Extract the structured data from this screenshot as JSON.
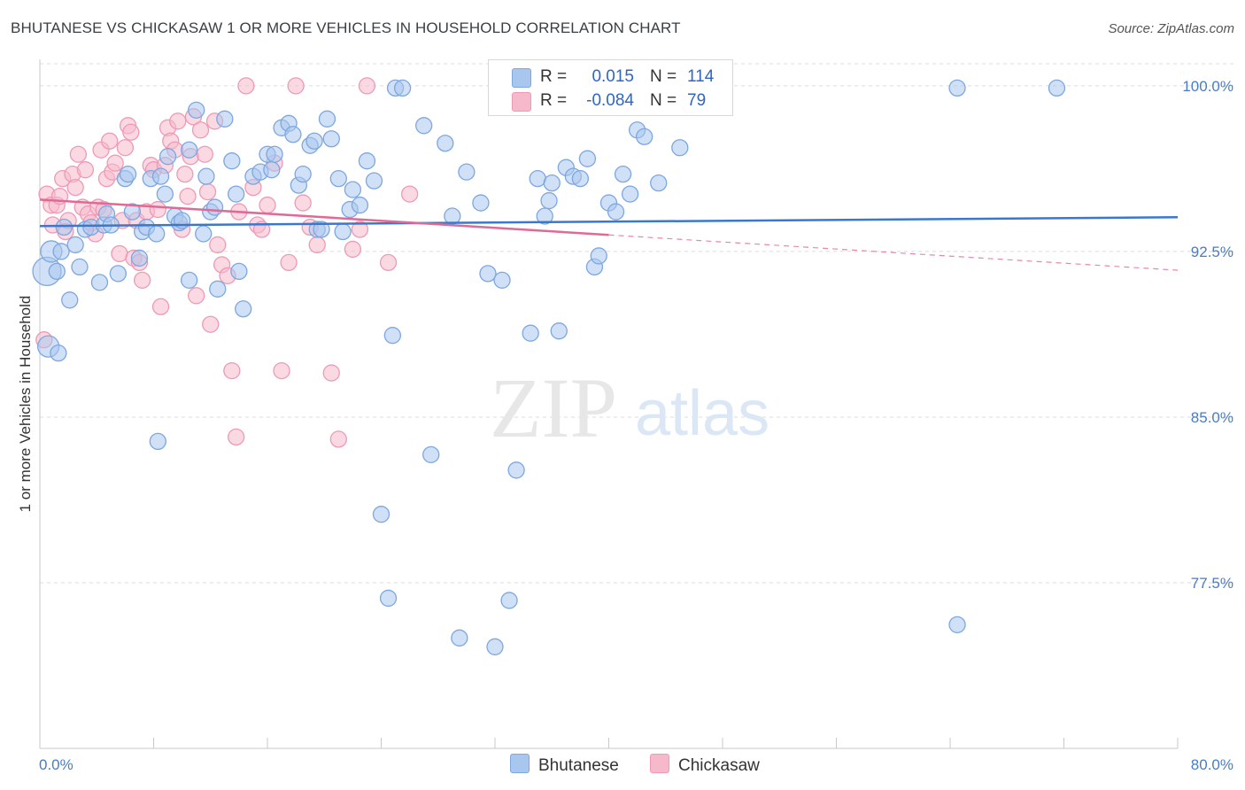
{
  "title": "BHUTANESE VS CHICKASAW 1 OR MORE VEHICLES IN HOUSEHOLD CORRELATION CHART",
  "source": "Source: ZipAtlas.com",
  "watermark": {
    "zip": "ZIP",
    "atlas": "atlas"
  },
  "colors": {
    "blue_fill": "#a9c6ee",
    "blue_stroke": "#7da7df",
    "blue_line": "#3b78cc",
    "pink_fill": "#f6b9cc",
    "pink_stroke": "#ee9ab5",
    "pink_line": "#e06a96",
    "grid": "#dcdcdc",
    "tick_text": "#4a7cc4"
  },
  "legend": {
    "rows": [
      {
        "r_label": "R =",
        "r_value": "0.015",
        "n_label": "N =",
        "n_value": "114",
        "color": "#a9c6ee"
      },
      {
        "r_label": "R =",
        "r_value": "-0.084",
        "n_label": "N =",
        "n_value": "79",
        "color": "#f6b9cc"
      }
    ]
  },
  "bottom_legend": [
    {
      "label": "Bhutanese",
      "color": "#a9c6ee"
    },
    {
      "label": "Chickasaw",
      "color": "#f6b9cc"
    }
  ],
  "chart_data": {
    "type": "scatter",
    "title": "BHUTANESE VS CHICKASAW 1 OR MORE VEHICLES IN HOUSEHOLD CORRELATION CHART",
    "xlabel": "",
    "ylabel": "1 or more Vehicles in Household",
    "xlim": [
      0,
      80
    ],
    "ylim": [
      70.0,
      101.4
    ],
    "x_tick_labels": [
      "0.0%",
      "80.0%"
    ],
    "y_ticks": [
      100.0,
      92.5,
      85.0,
      77.5
    ],
    "y_tick_labels": [
      "100.0%",
      "92.5%",
      "85.0%",
      "77.5%"
    ],
    "grid": true,
    "legend_position": "top-center",
    "series": [
      {
        "name": "Bhutanese",
        "r": 0.015,
        "n": 114,
        "trend": {
          "x": [
            0,
            80
          ],
          "y": [
            93.65,
            94.05
          ]
        },
        "points": [
          [
            0.5,
            91.6
          ],
          [
            0.6,
            88.2
          ],
          [
            0.8,
            92.5
          ],
          [
            1.2,
            91.6
          ],
          [
            1.3,
            87.9
          ],
          [
            1.5,
            92.5
          ],
          [
            1.7,
            93.6
          ],
          [
            2.1,
            90.3
          ],
          [
            2.5,
            92.8
          ],
          [
            2.8,
            91.8
          ],
          [
            3.2,
            93.5
          ],
          [
            3.6,
            93.6
          ],
          [
            4.2,
            91.1
          ],
          [
            4.5,
            93.7
          ],
          [
            4.7,
            94.2
          ],
          [
            5.0,
            93.7
          ],
          [
            5.5,
            91.5
          ],
          [
            6.0,
            95.8
          ],
          [
            6.2,
            96.0
          ],
          [
            6.5,
            94.3
          ],
          [
            7.0,
            92.2
          ],
          [
            7.2,
            93.4
          ],
          [
            7.5,
            93.6
          ],
          [
            7.8,
            95.8
          ],
          [
            8.2,
            93.3
          ],
          [
            8.3,
            83.9
          ],
          [
            8.5,
            95.9
          ],
          [
            8.8,
            95.1
          ],
          [
            9.0,
            96.8
          ],
          [
            9.5,
            94.1
          ],
          [
            9.8,
            93.8
          ],
          [
            10.0,
            93.9
          ],
          [
            10.5,
            97.1
          ],
          [
            10.5,
            91.2
          ],
          [
            11.0,
            98.9
          ],
          [
            11.5,
            93.3
          ],
          [
            11.7,
            95.9
          ],
          [
            12.0,
            94.3
          ],
          [
            12.3,
            94.5
          ],
          [
            12.5,
            90.8
          ],
          [
            13.0,
            98.5
          ],
          [
            13.5,
            96.6
          ],
          [
            13.8,
            95.1
          ],
          [
            14.0,
            91.6
          ],
          [
            14.3,
            89.9
          ],
          [
            15.0,
            95.9
          ],
          [
            15.5,
            96.1
          ],
          [
            16.0,
            96.9
          ],
          [
            16.3,
            96.2
          ],
          [
            16.5,
            96.9
          ],
          [
            17.0,
            98.1
          ],
          [
            17.5,
            98.3
          ],
          [
            17.8,
            97.8
          ],
          [
            18.2,
            95.5
          ],
          [
            18.5,
            96.0
          ],
          [
            19.0,
            97.3
          ],
          [
            19.3,
            97.5
          ],
          [
            19.5,
            93.5
          ],
          [
            19.8,
            93.5
          ],
          [
            20.2,
            98.5
          ],
          [
            20.5,
            97.6
          ],
          [
            21.0,
            95.8
          ],
          [
            21.3,
            93.4
          ],
          [
            21.8,
            94.4
          ],
          [
            22.0,
            95.3
          ],
          [
            22.5,
            94.6
          ],
          [
            23.0,
            96.6
          ],
          [
            23.5,
            95.7
          ],
          [
            24.0,
            80.6
          ],
          [
            24.5,
            76.8
          ],
          [
            24.8,
            88.7
          ],
          [
            25.0,
            99.9
          ],
          [
            25.5,
            99.9
          ],
          [
            27.0,
            98.2
          ],
          [
            27.5,
            83.3
          ],
          [
            28.5,
            97.4
          ],
          [
            29.0,
            94.1
          ],
          [
            29.5,
            75.0
          ],
          [
            30.0,
            96.1
          ],
          [
            31.0,
            94.7
          ],
          [
            31.5,
            91.5
          ],
          [
            32.0,
            74.6
          ],
          [
            32.5,
            91.2
          ],
          [
            33.0,
            76.7
          ],
          [
            33.5,
            82.6
          ],
          [
            34.0,
            99.8
          ],
          [
            34.5,
            88.8
          ],
          [
            35.0,
            95.8
          ],
          [
            35.5,
            94.1
          ],
          [
            35.8,
            94.8
          ],
          [
            36.0,
            95.6
          ],
          [
            36.5,
            88.9
          ],
          [
            37.0,
            96.3
          ],
          [
            37.5,
            95.9
          ],
          [
            38.0,
            95.8
          ],
          [
            38.5,
            96.7
          ],
          [
            39.0,
            91.8
          ],
          [
            39.3,
            92.3
          ],
          [
            40.0,
            94.7
          ],
          [
            40.5,
            94.3
          ],
          [
            41.0,
            96.0
          ],
          [
            41.5,
            95.1
          ],
          [
            42.0,
            98.0
          ],
          [
            42.5,
            97.7
          ],
          [
            43.0,
            99.9
          ],
          [
            43.5,
            95.6
          ],
          [
            44.0,
            99.9
          ],
          [
            45.0,
            97.2
          ],
          [
            46.0,
            99.9
          ],
          [
            47.5,
            99.9
          ],
          [
            64.5,
            99.9
          ],
          [
            64.5,
            75.6
          ],
          [
            71.5,
            99.9
          ]
        ]
      },
      {
        "name": "Chickasaw",
        "r": -0.084,
        "n": 79,
        "trend": {
          "x": [
            0,
            40
          ],
          "y": [
            94.85,
            93.25
          ]
        },
        "trend_dashed": {
          "x": [
            40,
            80
          ],
          "y": [
            93.25,
            91.65
          ]
        },
        "points": [
          [
            0.3,
            88.5
          ],
          [
            0.5,
            95.1
          ],
          [
            0.8,
            94.6
          ],
          [
            0.9,
            93.7
          ],
          [
            1.2,
            94.6
          ],
          [
            1.4,
            95.0
          ],
          [
            1.6,
            95.8
          ],
          [
            1.8,
            93.4
          ],
          [
            2.0,
            93.9
          ],
          [
            2.3,
            96.0
          ],
          [
            2.5,
            95.4
          ],
          [
            2.7,
            96.9
          ],
          [
            3.0,
            94.5
          ],
          [
            3.2,
            96.2
          ],
          [
            3.4,
            94.2
          ],
          [
            3.6,
            93.8
          ],
          [
            3.9,
            93.3
          ],
          [
            4.1,
            94.5
          ],
          [
            4.3,
            97.1
          ],
          [
            4.5,
            94.4
          ],
          [
            4.7,
            95.8
          ],
          [
            4.9,
            97.5
          ],
          [
            5.1,
            96.1
          ],
          [
            5.3,
            96.5
          ],
          [
            5.6,
            92.4
          ],
          [
            5.8,
            93.9
          ],
          [
            6.0,
            97.2
          ],
          [
            6.2,
            98.2
          ],
          [
            6.4,
            97.9
          ],
          [
            6.6,
            92.2
          ],
          [
            6.8,
            93.9
          ],
          [
            7.0,
            92.0
          ],
          [
            7.2,
            91.2
          ],
          [
            7.5,
            94.3
          ],
          [
            7.8,
            96.4
          ],
          [
            8.0,
            96.2
          ],
          [
            8.3,
            94.4
          ],
          [
            8.5,
            90.0
          ],
          [
            8.8,
            96.4
          ],
          [
            9.0,
            98.1
          ],
          [
            9.2,
            97.5
          ],
          [
            9.5,
            97.1
          ],
          [
            9.7,
            98.4
          ],
          [
            10.0,
            93.5
          ],
          [
            10.2,
            96.0
          ],
          [
            10.4,
            95.0
          ],
          [
            10.6,
            96.8
          ],
          [
            10.8,
            98.6
          ],
          [
            11.0,
            90.5
          ],
          [
            11.3,
            98.0
          ],
          [
            11.6,
            96.9
          ],
          [
            11.8,
            95.2
          ],
          [
            12.0,
            89.2
          ],
          [
            12.3,
            98.4
          ],
          [
            12.5,
            92.8
          ],
          [
            12.8,
            91.9
          ],
          [
            13.2,
            91.4
          ],
          [
            13.5,
            87.1
          ],
          [
            13.8,
            84.1
          ],
          [
            14.0,
            94.3
          ],
          [
            14.5,
            100.0
          ],
          [
            15.0,
            95.4
          ],
          [
            15.3,
            93.7
          ],
          [
            15.6,
            93.5
          ],
          [
            16.0,
            94.6
          ],
          [
            16.5,
            96.5
          ],
          [
            17.0,
            87.1
          ],
          [
            17.5,
            92.0
          ],
          [
            18.0,
            100.0
          ],
          [
            18.5,
            94.7
          ],
          [
            19.0,
            93.6
          ],
          [
            19.5,
            92.8
          ],
          [
            20.5,
            87.0
          ],
          [
            21.0,
            84.0
          ],
          [
            22.0,
            92.6
          ],
          [
            22.5,
            93.5
          ],
          [
            23.0,
            100.0
          ],
          [
            24.5,
            92.0
          ],
          [
            26.0,
            95.1
          ]
        ]
      }
    ]
  }
}
